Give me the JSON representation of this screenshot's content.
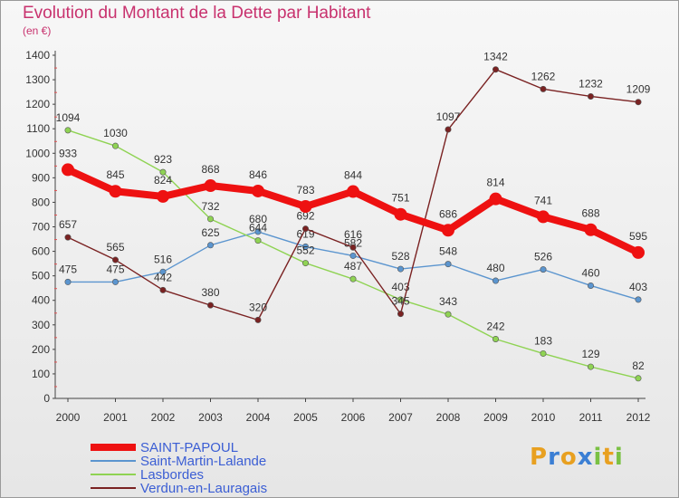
{
  "chart_data": {
    "type": "line",
    "title": "Evolution du Montant de la Dette par Habitant",
    "subtitle": "(en €)",
    "xlabel": "",
    "ylabel": "",
    "ylim": [
      0,
      1400
    ],
    "y_ticks": [
      0,
      100,
      200,
      300,
      400,
      500,
      600,
      700,
      800,
      900,
      1000,
      1100,
      1200,
      1300,
      1400
    ],
    "categories": [
      "2000",
      "2001",
      "2002",
      "2003",
      "2004",
      "2005",
      "2006",
      "2007",
      "2008",
      "2009",
      "2010",
      "2011",
      "2012"
    ],
    "grid": false,
    "legend_position": "bottom-left",
    "series": [
      {
        "name": "SAINT-PAPOUL",
        "color": "#ee1111",
        "values": [
          933,
          845,
          824,
          868,
          846,
          783,
          844,
          751,
          686,
          814,
          741,
          688,
          595
        ]
      },
      {
        "name": "Saint-Martin-Lalande",
        "color": "#5b95cf",
        "values": [
          475,
          475,
          516,
          625,
          680,
          619,
          582,
          528,
          548,
          480,
          526,
          460,
          403
        ]
      },
      {
        "name": "Lasbordes",
        "color": "#8fd353",
        "values": [
          1094,
          1030,
          923,
          732,
          644,
          552,
          487,
          403,
          343,
          242,
          183,
          129,
          82
        ]
      },
      {
        "name": "Verdun-en-Lauragais",
        "color": "#7a2222",
        "values": [
          657,
          565,
          442,
          380,
          320,
          692,
          616,
          345,
          1097,
          1342,
          1262,
          1232,
          1209
        ]
      }
    ]
  },
  "logo": {
    "letters": [
      {
        "ch": "P",
        "color": "#e8a020"
      },
      {
        "ch": "r",
        "color": "#3b7fd4"
      },
      {
        "ch": "o",
        "color": "#e8a020"
      },
      {
        "ch": "x",
        "color": "#3b7fd4"
      },
      {
        "ch": "i",
        "color": "#7ac143"
      },
      {
        "ch": "t",
        "color": "#e8a020"
      },
      {
        "ch": "i",
        "color": "#7ac143"
      }
    ]
  }
}
